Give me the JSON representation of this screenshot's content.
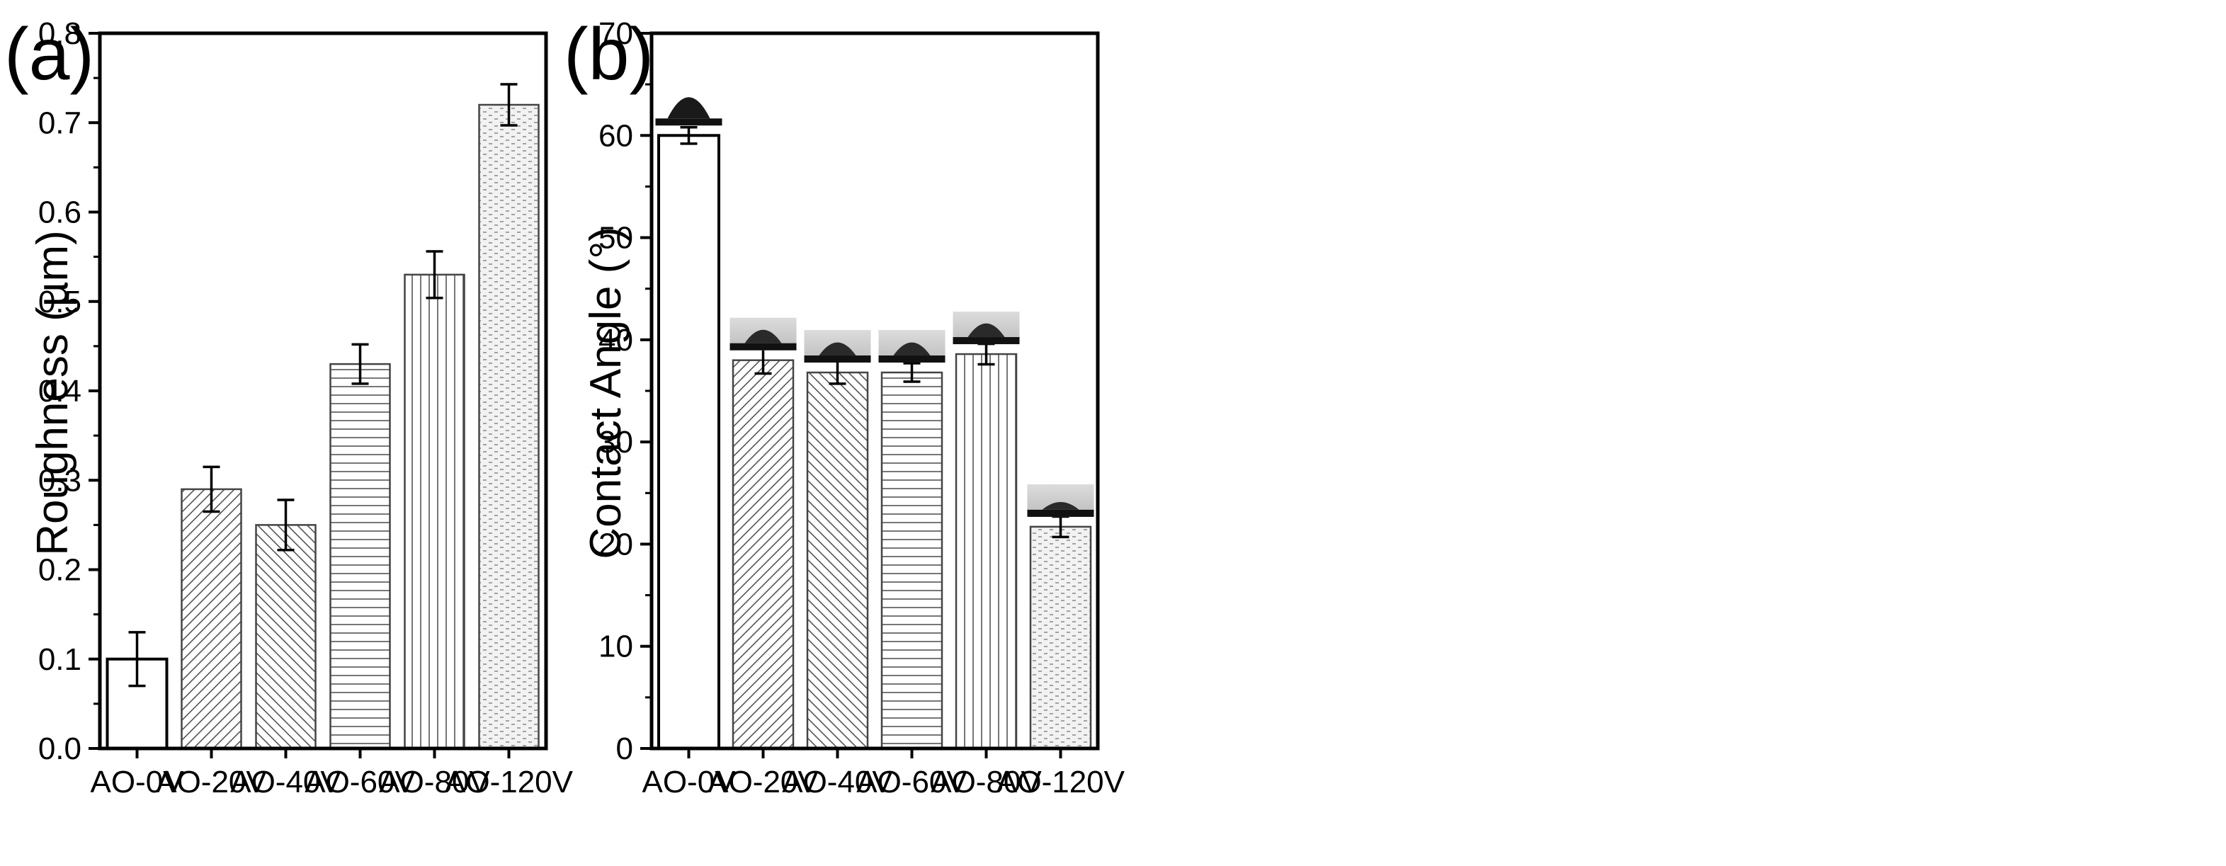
{
  "figure": {
    "panels": [
      {
        "label": "(a)"
      },
      {
        "label": "(b)"
      }
    ]
  },
  "chart_data": [
    {
      "type": "bar",
      "panel": "(a)",
      "title": "",
      "xlabel": "",
      "ylabel": "Roughness (µm)",
      "categories": [
        "AO-0V",
        "AO-20V",
        "AO-40V",
        "AO-60V",
        "AO-80V",
        "AO-120V"
      ],
      "values": [
        0.1,
        0.29,
        0.25,
        0.43,
        0.53,
        0.72
      ],
      "errors": [
        0.03,
        0.025,
        0.028,
        0.022,
        0.026,
        0.023
      ],
      "fill_patterns": [
        "none",
        "diagonal-up",
        "diagonal-down",
        "horizontal-lines",
        "vertical-lines",
        "dotted-dashes"
      ],
      "ylim": [
        0.0,
        0.8
      ],
      "yticks": [
        "0.0",
        "0.1",
        "0.2",
        "0.3",
        "0.4",
        "0.5",
        "0.6",
        "0.7",
        "0.8"
      ],
      "grid": false
    },
    {
      "type": "bar",
      "panel": "(b)",
      "title": "",
      "xlabel": "",
      "ylabel": "Contact Angle (°)",
      "categories": [
        "AO-0V",
        "AO-20V",
        "AO-40V",
        "AO-60V",
        "AO-80V",
        "AO-120V"
      ],
      "values": [
        60.0,
        38.0,
        36.8,
        36.8,
        38.6,
        21.7
      ],
      "errors": [
        0.8,
        1.3,
        1.1,
        0.9,
        1.0,
        1.0
      ],
      "fill_patterns": [
        "none",
        "diagonal-up",
        "diagonal-down",
        "horizontal-lines",
        "vertical-lines",
        "dotted-dashes"
      ],
      "ylim": [
        0,
        70
      ],
      "yticks": [
        "0",
        "10",
        "20",
        "30",
        "40",
        "50",
        "60",
        "70"
      ],
      "grid": false,
      "insets": [
        "droplet photo above each bar"
      ]
    }
  ]
}
